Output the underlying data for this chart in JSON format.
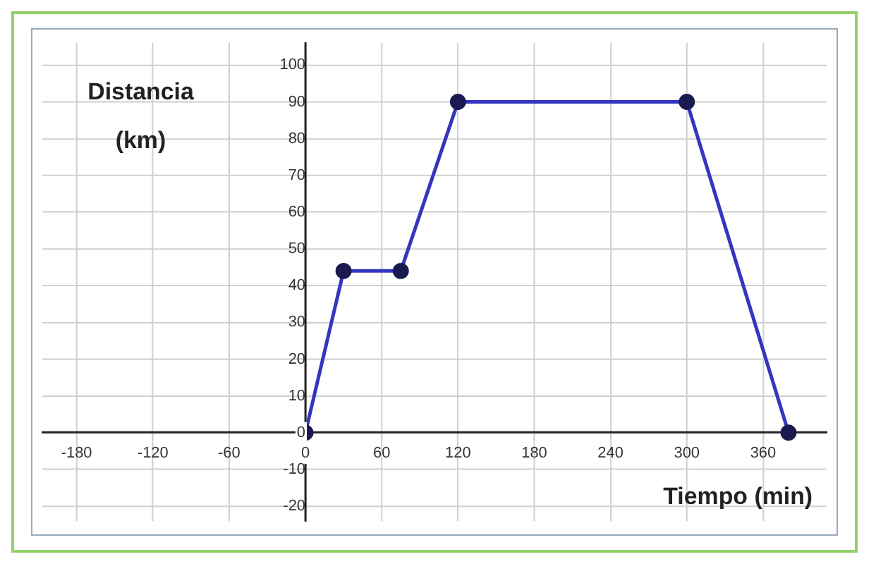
{
  "chart_data": {
    "type": "line",
    "xlabel": "Tiempo (min)",
    "ylabel": "Distancia (km)",
    "x": [
      0,
      30,
      75,
      120,
      300,
      380
    ],
    "series": [
      {
        "color": "#3535c0",
        "values": [
          0,
          44,
          44,
          90,
          90,
          0
        ]
      }
    ],
    "xlim": [
      -207,
      410
    ],
    "ylim": [
      -24,
      106
    ],
    "xticks": [
      -180,
      -120,
      -60,
      0,
      60,
      120,
      180,
      240,
      300,
      360
    ],
    "yticks": [
      -20,
      -10,
      0,
      10,
      20,
      30,
      40,
      50,
      60,
      70,
      80,
      90,
      100
    ],
    "grid": true,
    "marker": "circle",
    "line_style": "solid",
    "legend": false
  }
}
